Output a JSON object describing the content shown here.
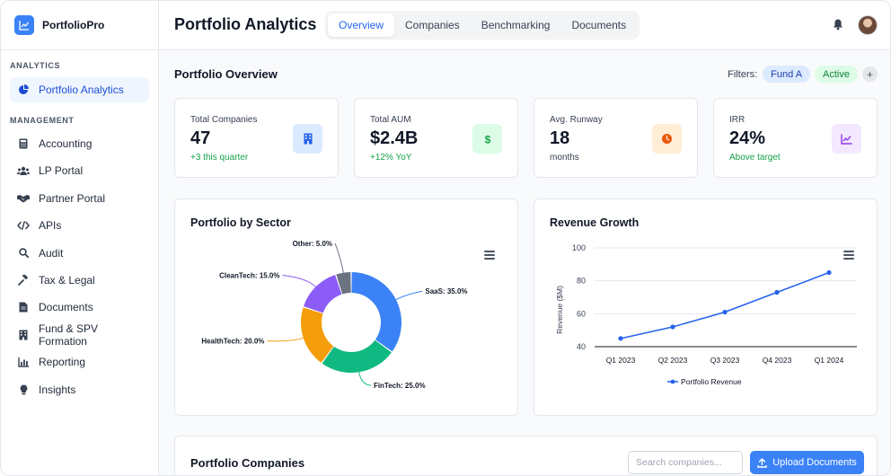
{
  "brand": {
    "name": "PortfolioPro"
  },
  "sidebar": {
    "sections": [
      {
        "label": "ANALYTICS"
      },
      {
        "label": "MANAGEMENT"
      }
    ],
    "items": [
      {
        "label": "Portfolio Analytics",
        "icon": "pie-chart-icon"
      },
      {
        "label": "Accounting",
        "icon": "calculator-icon"
      },
      {
        "label": "LP Portal",
        "icon": "users-icon"
      },
      {
        "label": "Partner Portal",
        "icon": "handshake-icon"
      },
      {
        "label": "APIs",
        "icon": "code-icon"
      },
      {
        "label": "Audit",
        "icon": "search-icon"
      },
      {
        "label": "Tax & Legal",
        "icon": "gavel-icon"
      },
      {
        "label": "Documents",
        "icon": "file-icon"
      },
      {
        "label": "Fund & SPV Formation",
        "icon": "building-icon"
      },
      {
        "label": "Reporting",
        "icon": "bar-chart-icon"
      },
      {
        "label": "Insights",
        "icon": "lightbulb-icon"
      }
    ]
  },
  "header": {
    "title": "Portfolio Analytics",
    "tabs": [
      {
        "label": "Overview"
      },
      {
        "label": "Companies"
      },
      {
        "label": "Benchmarking"
      },
      {
        "label": "Documents"
      }
    ]
  },
  "overview": {
    "title": "Portfolio Overview",
    "filters_label": "Filters:",
    "filter_chips": [
      "Fund A",
      "Active"
    ],
    "add_label": "+"
  },
  "stats": [
    {
      "label": "Total Companies",
      "value": "47",
      "sub": "+3 this quarter",
      "icon": "building-icon",
      "color": "#dbeafe",
      "fg": "#2563eb"
    },
    {
      "label": "Total AUM",
      "value": "$2.4B",
      "sub": "+12% YoY",
      "icon": "dollar-icon",
      "color": "#dcfce7",
      "fg": "#16a34a"
    },
    {
      "label": "Avg. Runway",
      "value": "18",
      "sub": "months",
      "icon": "clock-icon",
      "color": "#ffedd5",
      "fg": "#ea580c"
    },
    {
      "label": "IRR",
      "value": "24%",
      "sub": "Above target",
      "icon": "line-chart-icon",
      "color": "#f3e8ff",
      "fg": "#9333ea"
    }
  ],
  "chart_data": [
    {
      "type": "pie",
      "title": "Portfolio by Sector",
      "donut": true,
      "categories": [
        "SaaS",
        "FinTech",
        "HealthTech",
        "CleanTech",
        "Other"
      ],
      "values": [
        35.0,
        25.0,
        20.0,
        15.0,
        5.0
      ],
      "labels": [
        "SaaS: 35.0%",
        "FinTech: 25.0%",
        "HealthTech: 20.0%",
        "CleanTech: 15.0%",
        "Other: 5.0%"
      ],
      "colors": [
        "#3b82f6",
        "#10b981",
        "#f59e0b",
        "#8b5cf6",
        "#6b7280"
      ]
    },
    {
      "type": "line",
      "title": "Revenue Growth",
      "categories": [
        "Q1 2023",
        "Q2 2023",
        "Q3 2023",
        "Q4 2023",
        "Q1 2024"
      ],
      "series": [
        {
          "name": "Portfolio Revenue",
          "values": [
            45,
            52,
            61,
            73,
            85
          ]
        }
      ],
      "ylabel": "Revenue ($M)",
      "xlabel": "",
      "ylim": [
        40,
        100
      ],
      "yticks": [
        40,
        60,
        80,
        100
      ],
      "grid": true,
      "legend": "bottom",
      "color": "#2563eb"
    }
  ],
  "companies": {
    "title": "Portfolio Companies",
    "search_placeholder": "Search companies...",
    "upload_label": "Upload Documents"
  }
}
